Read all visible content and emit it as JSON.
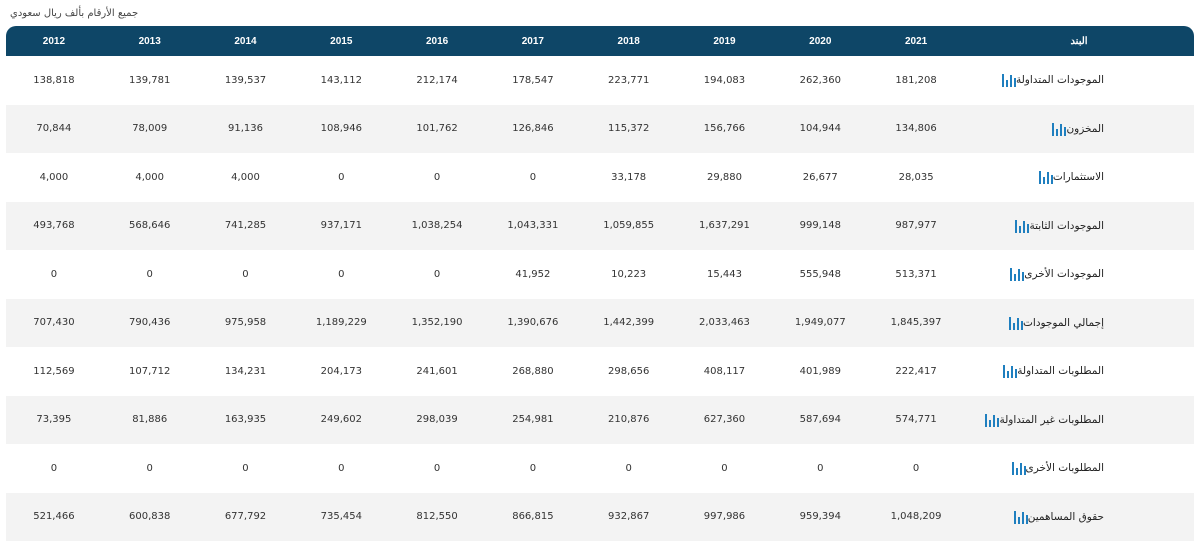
{
  "note": "جميع الأرقام بألف ريال سعودي",
  "header": {
    "item": "البند",
    "years": [
      "2021",
      "2020",
      "2019",
      "2018",
      "2017",
      "2016",
      "2015",
      "2014",
      "2013",
      "2012"
    ]
  },
  "rows": [
    {
      "label": "الموجودات المتداولة",
      "values": [
        "181,208",
        "262,360",
        "194,083",
        "223,771",
        "178,547",
        "212,174",
        "143,112",
        "139,537",
        "139,781",
        "138,818"
      ]
    },
    {
      "label": "المخزون",
      "values": [
        "134,806",
        "104,944",
        "156,766",
        "115,372",
        "126,846",
        "101,762",
        "108,946",
        "91,136",
        "78,009",
        "70,844"
      ]
    },
    {
      "label": "الاستثمارات",
      "values": [
        "28,035",
        "26,677",
        "29,880",
        "33,178",
        "0",
        "0",
        "0",
        "4,000",
        "4,000",
        "4,000"
      ]
    },
    {
      "label": "الموجودات الثابتة",
      "values": [
        "987,977",
        "999,148",
        "1,637,291",
        "1,059,855",
        "1,043,331",
        "1,038,254",
        "937,171",
        "741,285",
        "568,646",
        "493,768"
      ]
    },
    {
      "label": "الموجودات الأخرى",
      "values": [
        "513,371",
        "555,948",
        "15,443",
        "10,223",
        "41,952",
        "0",
        "0",
        "0",
        "0",
        "0"
      ]
    },
    {
      "label": "إجمالي الموجودات",
      "values": [
        "1,845,397",
        "1,949,077",
        "2,033,463",
        "1,442,399",
        "1,390,676",
        "1,352,190",
        "1,189,229",
        "975,958",
        "790,436",
        "707,430"
      ]
    },
    {
      "label": "المطلوبات المتداولة",
      "values": [
        "222,417",
        "401,989",
        "408,117",
        "298,656",
        "268,880",
        "241,601",
        "204,173",
        "134,231",
        "107,712",
        "112,569"
      ]
    },
    {
      "label": "المطلوبات غير المتداولة",
      "values": [
        "574,771",
        "587,694",
        "627,360",
        "210,876",
        "254,981",
        "298,039",
        "249,602",
        "163,935",
        "81,886",
        "73,395"
      ]
    },
    {
      "label": "المطلوبات الأخرى",
      "values": [
        "0",
        "0",
        "0",
        "0",
        "0",
        "0",
        "0",
        "0",
        "0",
        "0"
      ]
    },
    {
      "label": "حقوق المساهمين",
      "values": [
        "1,048,209",
        "959,394",
        "997,986",
        "932,867",
        "866,815",
        "812,550",
        "735,454",
        "677,792",
        "600,838",
        "521,466"
      ]
    }
  ]
}
